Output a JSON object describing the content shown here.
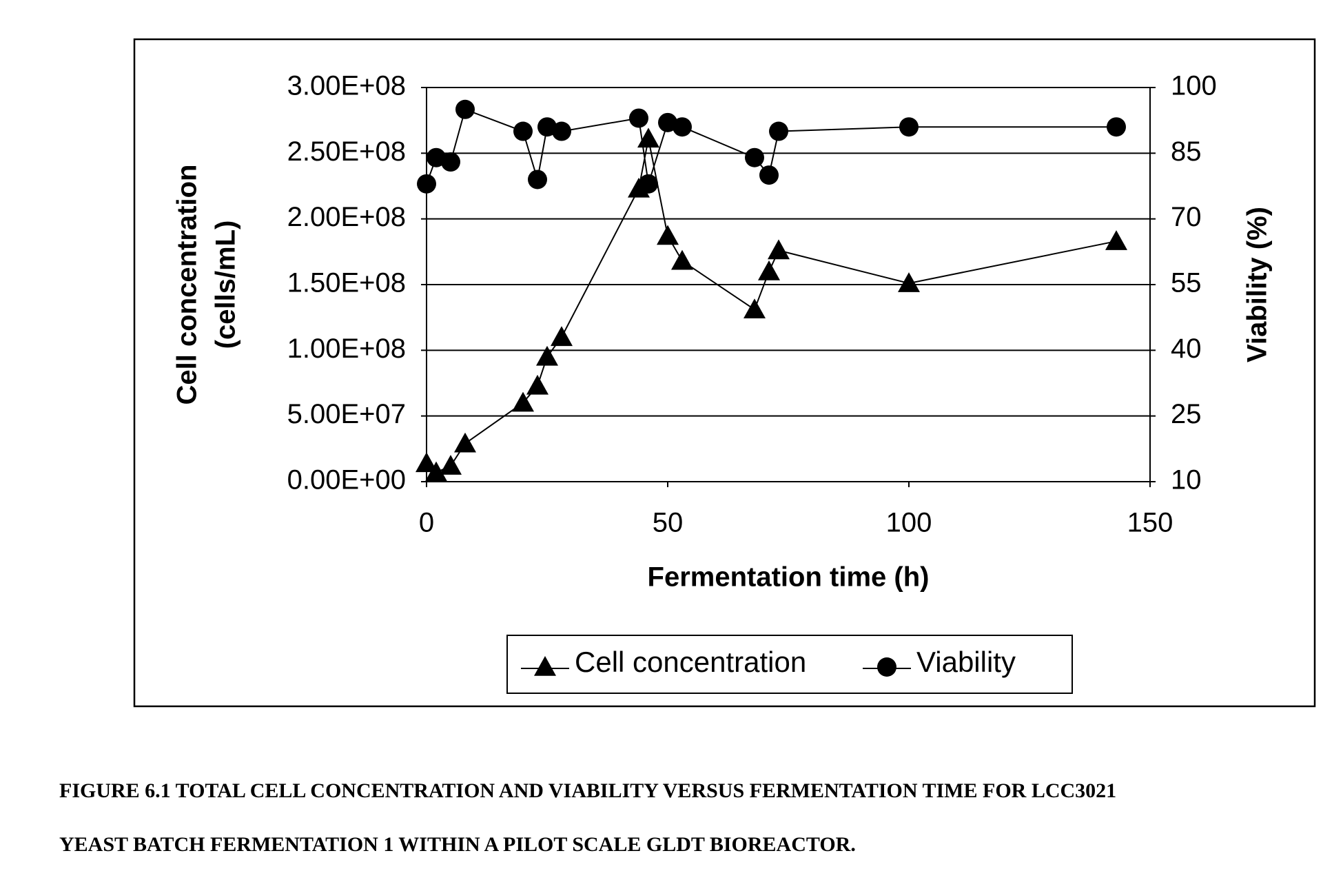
{
  "chart_data": {
    "type": "line",
    "xlabel": "Fermentation time (h)",
    "ylabel": [
      "Cell concentration",
      "(cells/mL)"
    ],
    "y2label": "Viability (%)",
    "x": [
      0,
      2,
      5,
      8,
      20,
      23,
      25,
      28,
      44,
      46,
      50,
      53,
      68,
      71,
      73,
      100,
      143
    ],
    "series": [
      {
        "name": "Cell concentration",
        "color": "#000000",
        "marker": "triangle",
        "values": [
          14000000,
          7000000,
          12000000,
          29000000,
          60000000,
          73000000,
          95000000,
          110000000,
          223000000,
          261000000,
          187000000,
          168000000,
          131000000,
          160000000,
          176000000,
          151000000,
          183000000
        ]
      },
      {
        "name": "Viability",
        "color": "#000000",
        "marker": "circle",
        "axis": "y2",
        "values": [
          78,
          84,
          83,
          95,
          90,
          79,
          91,
          90,
          93,
          78,
          92,
          91,
          84,
          80,
          90,
          91,
          91
        ]
      }
    ],
    "xlim": [
      0,
      150
    ],
    "xticks": [
      0,
      50,
      100,
      150
    ],
    "ylim": [
      0,
      300000000
    ],
    "yticks": [
      {
        "value": 0,
        "label": "0.00E+00"
      },
      {
        "value": 50000000,
        "label": "5.00E+07"
      },
      {
        "value": 100000000,
        "label": "1.00E+08"
      },
      {
        "value": 150000000,
        "label": "1.50E+08"
      },
      {
        "value": 200000000,
        "label": "2.00E+08"
      },
      {
        "value": 250000000,
        "label": "2.50E+08"
      },
      {
        "value": 300000000,
        "label": "3.00E+08"
      }
    ],
    "y2lim": [
      10,
      100
    ],
    "y2ticks": [
      10,
      25,
      40,
      55,
      70,
      85,
      100
    ],
    "grid": true,
    "legend": "bottom",
    "caption": [
      "FIGURE 6.1 TOTAL CELL CONCENTRATION AND VIABILITY VERSUS FERMENTATION TIME FOR LCC3021",
      "YEAST BATCH FERMENTATION 1 WITHIN A PILOT SCALE GLDT BIOREACTOR."
    ]
  }
}
